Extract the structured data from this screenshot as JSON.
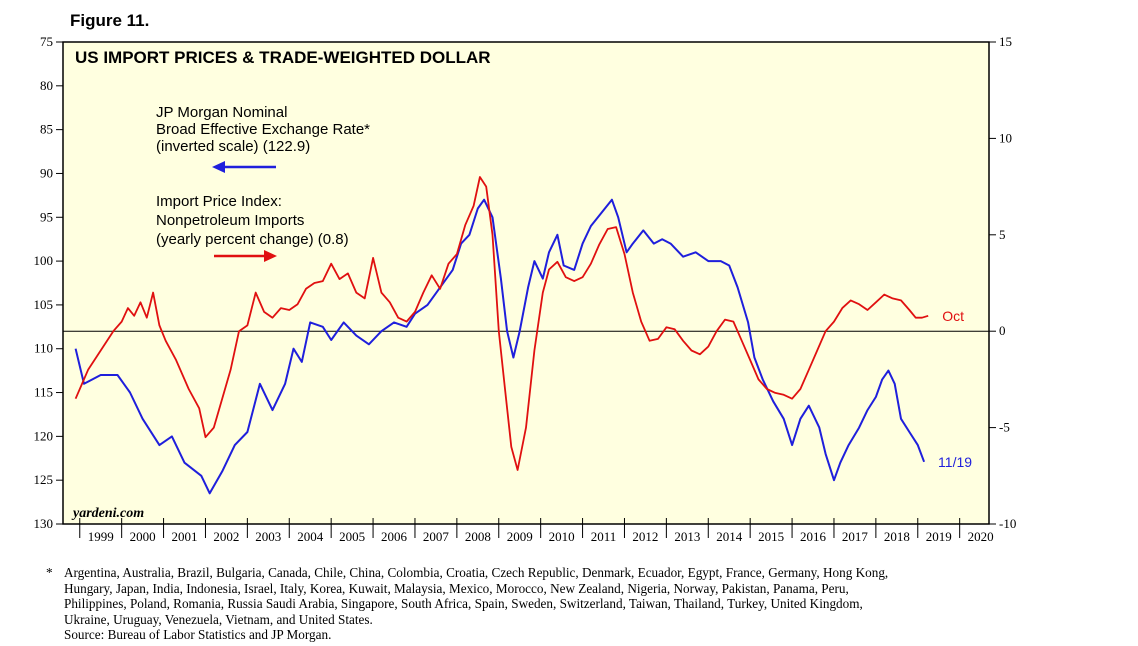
{
  "figure_label": "Figure 11.",
  "chart_data": {
    "type": "line",
    "title": "US IMPORT PRICES & TRADE-WEIGHTED DOLLAR",
    "watermark": "yardeni.com",
    "x_ticks": [
      "1999",
      "2000",
      "2001",
      "2002",
      "2003",
      "2004",
      "2005",
      "2006",
      "2007",
      "2008",
      "2009",
      "2010",
      "2011",
      "2012",
      "2013",
      "2014",
      "2015",
      "2016",
      "2017",
      "2018",
      "2019",
      "2020"
    ],
    "left_axis": {
      "min": 75,
      "max": 130,
      "inverted": true,
      "ticks": [
        "75",
        "80",
        "85",
        "90",
        "95",
        "100",
        "105",
        "110",
        "115",
        "120",
        "125",
        "130"
      ]
    },
    "right_axis": {
      "min": -10,
      "max": 15,
      "ticks": [
        "15",
        "10",
        "5",
        "0",
        "-5",
        "-10"
      ]
    },
    "legend": {
      "blue_lines": [
        "JP Morgan Nominal",
        "Broad Effective Exchange Rate*",
        "(inverted scale) (122.9)"
      ],
      "red_lines": [
        "Import Price Index:",
        "Nonpetroleum Imports",
        "(yearly percent change) (0.8)"
      ]
    },
    "series": [
      {
        "name": "JP Morgan Nominal Broad Effective Exchange Rate (inverted scale)",
        "axis": "left",
        "color": "#1f1fdc",
        "end_label": "11/19",
        "points": [
          [
            1998.9,
            110
          ],
          [
            1999.1,
            114
          ],
          [
            1999.5,
            113
          ],
          [
            1999.9,
            113
          ],
          [
            2000.2,
            115
          ],
          [
            2000.5,
            118
          ],
          [
            2000.9,
            121
          ],
          [
            2001.2,
            120
          ],
          [
            2001.5,
            123
          ],
          [
            2001.9,
            124.5
          ],
          [
            2002.1,
            126.5
          ],
          [
            2002.4,
            124
          ],
          [
            2002.7,
            121
          ],
          [
            2003.0,
            119.5
          ],
          [
            2003.3,
            114
          ],
          [
            2003.6,
            117
          ],
          [
            2003.9,
            114
          ],
          [
            2004.1,
            110
          ],
          [
            2004.3,
            111.5
          ],
          [
            2004.5,
            107
          ],
          [
            2004.8,
            107.5
          ],
          [
            2005.0,
            109
          ],
          [
            2005.3,
            107
          ],
          [
            2005.6,
            108.5
          ],
          [
            2005.9,
            109.5
          ],
          [
            2006.2,
            108
          ],
          [
            2006.5,
            107
          ],
          [
            2006.8,
            107.5
          ],
          [
            2007.0,
            106
          ],
          [
            2007.3,
            105
          ],
          [
            2007.6,
            103
          ],
          [
            2007.9,
            101
          ],
          [
            2008.1,
            98
          ],
          [
            2008.3,
            97
          ],
          [
            2008.5,
            94
          ],
          [
            2008.65,
            93
          ],
          [
            2008.85,
            95
          ],
          [
            2009.05,
            102
          ],
          [
            2009.2,
            108
          ],
          [
            2009.35,
            111
          ],
          [
            2009.5,
            108
          ],
          [
            2009.7,
            103
          ],
          [
            2009.85,
            100
          ],
          [
            2010.05,
            102
          ],
          [
            2010.2,
            99
          ],
          [
            2010.4,
            97
          ],
          [
            2010.55,
            100.5
          ],
          [
            2010.8,
            101
          ],
          [
            2011.0,
            98
          ],
          [
            2011.2,
            96
          ],
          [
            2011.45,
            94.5
          ],
          [
            2011.7,
            93
          ],
          [
            2011.85,
            95
          ],
          [
            2012.05,
            99
          ],
          [
            2012.2,
            98
          ],
          [
            2012.45,
            96.5
          ],
          [
            2012.7,
            98
          ],
          [
            2012.9,
            97.5
          ],
          [
            2013.1,
            98
          ],
          [
            2013.4,
            99.5
          ],
          [
            2013.7,
            99
          ],
          [
            2014.0,
            100
          ],
          [
            2014.3,
            100
          ],
          [
            2014.5,
            100.5
          ],
          [
            2014.7,
            103
          ],
          [
            2014.95,
            107
          ],
          [
            2015.1,
            111
          ],
          [
            2015.3,
            113.5
          ],
          [
            2015.55,
            116
          ],
          [
            2015.8,
            118
          ],
          [
            2016.0,
            121
          ],
          [
            2016.2,
            118
          ],
          [
            2016.4,
            116.5
          ],
          [
            2016.65,
            119
          ],
          [
            2016.8,
            122
          ],
          [
            2017.0,
            125
          ],
          [
            2017.15,
            123
          ],
          [
            2017.35,
            121
          ],
          [
            2017.6,
            119
          ],
          [
            2017.8,
            117
          ],
          [
            2018.0,
            115.5
          ],
          [
            2018.15,
            113.5
          ],
          [
            2018.3,
            112.5
          ],
          [
            2018.45,
            114
          ],
          [
            2018.6,
            118
          ],
          [
            2018.8,
            119.5
          ],
          [
            2019.0,
            121
          ],
          [
            2019.15,
            122.9
          ]
        ]
      },
      {
        "name": "Import Price Index: Nonpetroleum Imports (yearly percent change)",
        "axis": "right",
        "color": "#e01010",
        "end_label": "Oct",
        "points": [
          [
            1998.9,
            -3.5
          ],
          [
            1999.2,
            -2
          ],
          [
            1999.5,
            -1
          ],
          [
            1999.8,
            0
          ],
          [
            2000.0,
            0.5
          ],
          [
            2000.15,
            1.2
          ],
          [
            2000.3,
            0.8
          ],
          [
            2000.45,
            1.5
          ],
          [
            2000.6,
            0.7
          ],
          [
            2000.75,
            2
          ],
          [
            2000.9,
            0.3
          ],
          [
            2001.05,
            -0.5
          ],
          [
            2001.3,
            -1.5
          ],
          [
            2001.6,
            -3
          ],
          [
            2001.85,
            -4
          ],
          [
            2002.0,
            -5.5
          ],
          [
            2002.2,
            -5
          ],
          [
            2002.4,
            -3.5
          ],
          [
            2002.6,
            -2
          ],
          [
            2002.8,
            0
          ],
          [
            2003.0,
            0.3
          ],
          [
            2003.2,
            2
          ],
          [
            2003.4,
            1
          ],
          [
            2003.6,
            0.7
          ],
          [
            2003.8,
            1.2
          ],
          [
            2004.0,
            1.1
          ],
          [
            2004.2,
            1.4
          ],
          [
            2004.4,
            2.2
          ],
          [
            2004.6,
            2.5
          ],
          [
            2004.8,
            2.6
          ],
          [
            2005.0,
            3.5
          ],
          [
            2005.2,
            2.7
          ],
          [
            2005.4,
            3
          ],
          [
            2005.6,
            2
          ],
          [
            2005.8,
            1.7
          ],
          [
            2006.0,
            3.8
          ],
          [
            2006.2,
            2
          ],
          [
            2006.4,
            1.5
          ],
          [
            2006.6,
            0.7
          ],
          [
            2006.8,
            0.5
          ],
          [
            2007.0,
            1
          ],
          [
            2007.2,
            2
          ],
          [
            2007.4,
            2.9
          ],
          [
            2007.6,
            2.2
          ],
          [
            2007.8,
            3.5
          ],
          [
            2008.0,
            4
          ],
          [
            2008.2,
            5.5
          ],
          [
            2008.4,
            6.5
          ],
          [
            2008.55,
            8
          ],
          [
            2008.7,
            7.5
          ],
          [
            2008.85,
            5
          ],
          [
            2009.0,
            0
          ],
          [
            2009.15,
            -3
          ],
          [
            2009.3,
            -6
          ],
          [
            2009.45,
            -7.2
          ],
          [
            2009.65,
            -5
          ],
          [
            2009.85,
            -1
          ],
          [
            2010.05,
            2
          ],
          [
            2010.2,
            3.2
          ],
          [
            2010.4,
            3.6
          ],
          [
            2010.6,
            2.8
          ],
          [
            2010.8,
            2.6
          ],
          [
            2011.0,
            2.8
          ],
          [
            2011.2,
            3.5
          ],
          [
            2011.4,
            4.5
          ],
          [
            2011.6,
            5.3
          ],
          [
            2011.8,
            5.4
          ],
          [
            2012.0,
            4
          ],
          [
            2012.2,
            2
          ],
          [
            2012.4,
            0.5
          ],
          [
            2012.6,
            -0.5
          ],
          [
            2012.8,
            -0.4
          ],
          [
            2013.0,
            0.2
          ],
          [
            2013.2,
            0.1
          ],
          [
            2013.4,
            -0.5
          ],
          [
            2013.6,
            -1
          ],
          [
            2013.8,
            -1.2
          ],
          [
            2014.0,
            -0.8
          ],
          [
            2014.2,
            0
          ],
          [
            2014.4,
            0.6
          ],
          [
            2014.6,
            0.5
          ],
          [
            2014.8,
            -0.5
          ],
          [
            2015.0,
            -1.5
          ],
          [
            2015.2,
            -2.5
          ],
          [
            2015.4,
            -3
          ],
          [
            2015.6,
            -3.2
          ],
          [
            2015.8,
            -3.3
          ],
          [
            2016.0,
            -3.5
          ],
          [
            2016.2,
            -3
          ],
          [
            2016.4,
            -2
          ],
          [
            2016.6,
            -1
          ],
          [
            2016.8,
            0
          ],
          [
            2017.0,
            0.5
          ],
          [
            2017.2,
            1.2
          ],
          [
            2017.4,
            1.6
          ],
          [
            2017.6,
            1.4
          ],
          [
            2017.8,
            1.1
          ],
          [
            2018.0,
            1.5
          ],
          [
            2018.2,
            1.9
          ],
          [
            2018.4,
            1.7
          ],
          [
            2018.6,
            1.6
          ],
          [
            2018.8,
            1.1
          ],
          [
            2018.95,
            0.7
          ],
          [
            2019.1,
            0.7
          ],
          [
            2019.25,
            0.8
          ]
        ]
      }
    ]
  },
  "footnote": {
    "star": "*",
    "countries_lines": [
      "Argentina, Australia, Brazil, Bulgaria, Canada, Chile, China, Colombia, Croatia, Czech Republic, Denmark, Ecuador, Egypt, France, Germany, Hong Kong,",
      "Hungary, Japan, India, Indonesia, Israel, Italy, Korea, Kuwait, Malaysia, Mexico, Morocco, New Zealand, Nigeria, Norway, Pakistan, Panama, Peru,",
      "Philippines, Poland, Romania, Russia Saudi Arabia, Singapore, South Africa, Spain, Sweden, Switzerland, Taiwan, Thailand, Turkey, United Kingdom,",
      "Ukraine, Uruguay, Venezuela, Vietnam, and United States."
    ],
    "source": "Source: Bureau of Labor Statistics and JP Morgan."
  }
}
